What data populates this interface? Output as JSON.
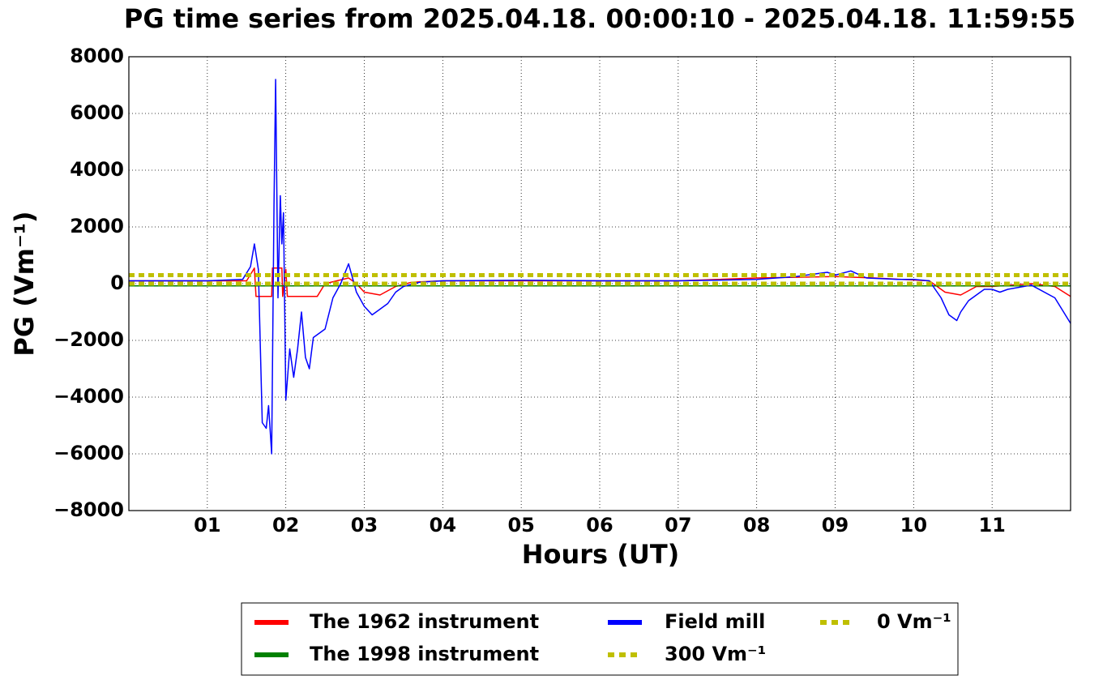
{
  "chart_data": {
    "type": "line",
    "title": "PG time series from 2025.04.18. 00:00:10 - 2025.04.18. 11:59:55",
    "x_label": "Hours (UT)",
    "y_label": "PG (Vm⁻¹)",
    "xlim": [
      0,
      12
    ],
    "xticks": [
      {
        "value": 1,
        "label": "01"
      },
      {
        "value": 2,
        "label": "02"
      },
      {
        "value": 3,
        "label": "03"
      },
      {
        "value": 4,
        "label": "04"
      },
      {
        "value": 5,
        "label": "05"
      },
      {
        "value": 6,
        "label": "06"
      },
      {
        "value": 7,
        "label": "07"
      },
      {
        "value": 8,
        "label": "08"
      },
      {
        "value": 9,
        "label": "09"
      },
      {
        "value": 10,
        "label": "10"
      },
      {
        "value": 11,
        "label": "11"
      }
    ],
    "ylim": [
      -8000,
      8000
    ],
    "yticks": [
      {
        "value": -8000,
        "label": "−8000"
      },
      {
        "value": -6000,
        "label": "−6000"
      },
      {
        "value": -4000,
        "label": "−4000"
      },
      {
        "value": -2000,
        "label": "−2000"
      },
      0,
      2000,
      4000,
      6000,
      8000
    ],
    "grid": true,
    "legend": "bottom",
    "series": [
      {
        "name": "The 1962 instrument",
        "color": "#ff0000",
        "width": 1.5,
        "dash": false,
        "x": [
          0,
          1.5,
          1.6,
          1.62,
          1.82,
          1.83,
          1.95,
          1.96,
          2.0,
          2.02,
          2.4,
          2.5,
          2.8,
          2.9,
          3.0,
          3.2,
          3.4,
          3.6,
          4,
          7,
          8,
          9,
          9.5,
          10.2,
          10.4,
          10.6,
          10.8,
          11,
          11.5,
          11.8,
          12
        ],
        "values": [
          100,
          100,
          550,
          -450,
          -450,
          550,
          550,
          -450,
          500,
          -450,
          -450,
          0,
          200,
          0,
          -300,
          -400,
          -100,
          50,
          100,
          100,
          200,
          250,
          200,
          100,
          -300,
          -400,
          -100,
          -100,
          0,
          -100,
          -450
        ]
      },
      {
        "name": "The 1998 instrument",
        "color": "#008000",
        "width": 1.5,
        "dash": false,
        "x": [
          0,
          12
        ],
        "values": [
          -80,
          -80
        ]
      },
      {
        "name": "Field mill",
        "color": "#0000ff",
        "width": 1.5,
        "dash": false,
        "x": [
          0,
          0.5,
          1.0,
          1.45,
          1.55,
          1.6,
          1.65,
          1.7,
          1.75,
          1.78,
          1.82,
          1.85,
          1.87,
          1.9,
          1.93,
          1.95,
          1.97,
          2.0,
          2.05,
          2.1,
          2.15,
          2.2,
          2.25,
          2.3,
          2.35,
          2.5,
          2.6,
          2.7,
          2.8,
          2.85,
          2.9,
          3.0,
          3.1,
          3.2,
          3.3,
          3.4,
          3.5,
          3.7,
          4,
          5,
          6,
          7,
          8,
          8.5,
          8.9,
          9.0,
          9.2,
          9.4,
          9.8,
          10.0,
          10.2,
          10.35,
          10.45,
          10.55,
          10.6,
          10.7,
          10.8,
          10.9,
          11.0,
          11.1,
          11.2,
          11.5,
          11.8,
          12
        ],
        "values": [
          100,
          100,
          100,
          150,
          600,
          1400,
          500,
          -4900,
          -5100,
          -4300,
          -6000,
          2800,
          7200,
          -500,
          3100,
          1400,
          2500,
          -4100,
          -2300,
          -3300,
          -2300,
          -1000,
          -2600,
          -3000,
          -1900,
          -1600,
          -500,
          0,
          700,
          200,
          -300,
          -800,
          -1100,
          -900,
          -700,
          -300,
          -100,
          50,
          100,
          120,
          100,
          100,
          150,
          250,
          400,
          300,
          450,
          200,
          150,
          150,
          100,
          -500,
          -1100,
          -1300,
          -1000,
          -600,
          -400,
          -200,
          -200,
          -300,
          -200,
          -50,
          -500,
          -1400
        ]
      },
      {
        "name": "300 Vm⁻¹",
        "color": "#bfbf00",
        "width": 5,
        "dash": true,
        "x": [
          0,
          12
        ],
        "values": [
          300,
          300
        ]
      },
      {
        "name": "0 Vm⁻¹",
        "color": "#bfbf00",
        "width": 5,
        "dash": true,
        "x": [
          0,
          12
        ],
        "values": [
          0,
          0
        ]
      }
    ]
  }
}
